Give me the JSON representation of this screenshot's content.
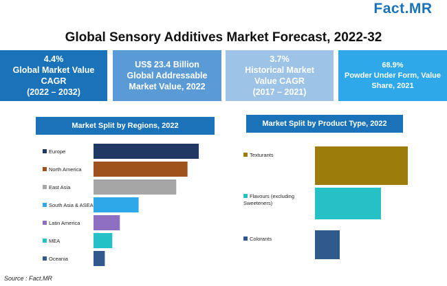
{
  "logo": "Fact.MR",
  "title": "Global Sensory Additives Market Forecast, 2022-32",
  "kpis": [
    {
      "value": "4.4%",
      "label": "Global Market Value\nCAGR\n(2022 – 2032)",
      "color": "#1a73b8"
    },
    {
      "value": "US$ 23.4 Billion",
      "label": "Global Addressable\nMarket Value, 2022",
      "color": "#5b9bd5"
    },
    {
      "value": "3.7%",
      "label": "Historical Market\nValue CAGR\n(2017 – 2021)",
      "color": "#9dc3e6"
    },
    {
      "value": "68.9%",
      "label": "Powder Under Form, Value\nShare, 2021",
      "color": "#2ea8e8"
    }
  ],
  "regions_panel": {
    "title": "Market Split by Regions, 2022",
    "color": "#1a73b8"
  },
  "product_panel": {
    "title": "Market Split by Product Type, 2022",
    "color": "#1a73b8"
  },
  "source": "Source : Fact.MR",
  "chart_data": [
    {
      "type": "bar",
      "orientation": "horizontal",
      "title": "Market Split by Regions, 2022",
      "categories": [
        "Europe",
        "North America",
        "East Asia",
        "South Asia & ASEAN",
        "Latin America",
        "MEA",
        "Oceania"
      ],
      "values": [
        28,
        25,
        22,
        12,
        7,
        5,
        3
      ],
      "colors": [
        "#1f3864",
        "#a0521c",
        "#a6a6a6",
        "#2ea8e8",
        "#8e6fc1",
        "#26c0c7",
        "#2f5a8a"
      ],
      "xlim": [
        0,
        30
      ],
      "legend": "left",
      "grid": false
    },
    {
      "type": "bar",
      "orientation": "horizontal",
      "title": "Market Split by Product Type, 2022",
      "categories": [
        "Texturants",
        "Flavours (excluding Sweeteners)",
        "Colorants"
      ],
      "values": [
        45,
        32,
        12
      ],
      "colors": [
        "#9c7d0b",
        "#26c0c7",
        "#2f5a8a"
      ],
      "xlim": [
        0,
        50
      ],
      "legend": "left",
      "grid": false
    }
  ]
}
